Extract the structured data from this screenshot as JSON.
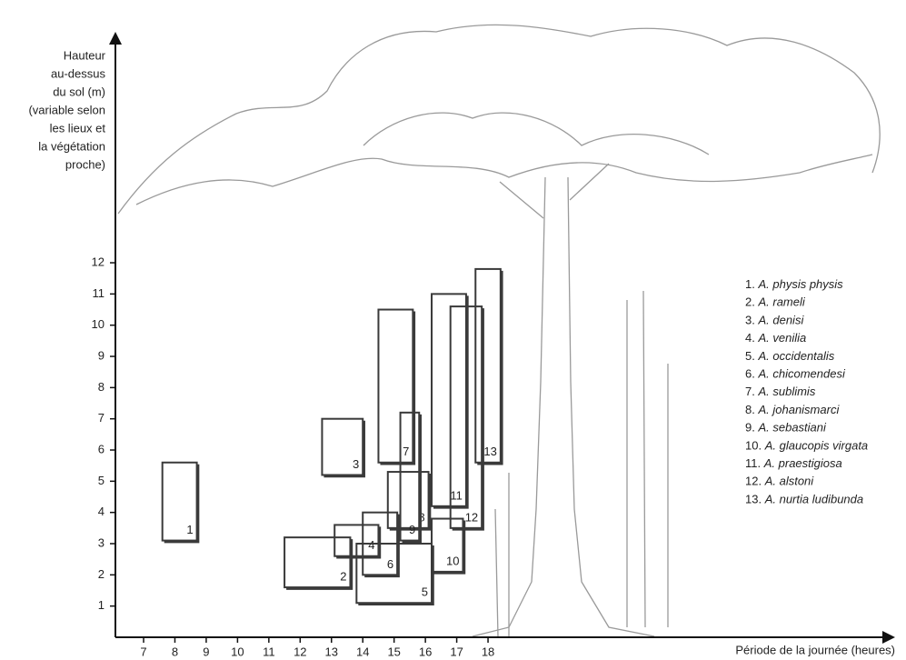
{
  "chart_data": {
    "type": "range",
    "ylabel": [
      "Hauteur",
      "au-dessus",
      "du sol (m)",
      "(variable selon",
      "les lieux et",
      "la végétation",
      "proche)"
    ],
    "xlabel": "Période de la journée (heures)",
    "xlim": [
      6.1,
      31
    ],
    "ylim": [
      0,
      19.4
    ],
    "xticks": [
      7,
      8,
      9,
      10,
      11,
      12,
      13,
      14,
      15,
      16,
      17,
      18
    ],
    "yticks": [
      1,
      2,
      3,
      4,
      5,
      6,
      7,
      8,
      9,
      10,
      11,
      12
    ],
    "color": "#3a3a3a",
    "series": [
      {
        "label": "1",
        "key": "1.",
        "name": "A. physis physis",
        "x": [
          7.6,
          8.7
        ],
        "y": [
          3.1,
          5.6
        ]
      },
      {
        "label": "2",
        "key": "2.",
        "name": "A. rameli",
        "x": [
          11.5,
          13.6
        ],
        "y": [
          1.6,
          3.2
        ]
      },
      {
        "label": "3",
        "key": "3.",
        "name": "A. denisi",
        "x": [
          12.7,
          14.0
        ],
        "y": [
          5.2,
          7.0
        ]
      },
      {
        "label": "4",
        "key": "4.",
        "name": "A. venilia",
        "x": [
          13.1,
          14.5
        ],
        "y": [
          2.6,
          3.6
        ]
      },
      {
        "label": "5",
        "key": "5.",
        "name": "A. occidentalis",
        "x": [
          13.8,
          16.2
        ],
        "y": [
          1.1,
          3.0
        ]
      },
      {
        "label": "6",
        "key": "6.",
        "name": "A. chicomendesi",
        "x": [
          14.0,
          15.1
        ],
        "y": [
          2.0,
          4.0
        ]
      },
      {
        "label": "7",
        "key": "7.",
        "name": "A. sublimis",
        "x": [
          14.5,
          15.6
        ],
        "y": [
          5.6,
          10.5
        ]
      },
      {
        "label": "8",
        "key": "8.",
        "name": "A. johanismarci",
        "x": [
          14.8,
          16.1
        ],
        "y": [
          3.5,
          5.3
        ]
      },
      {
        "label": "9",
        "key": "9.",
        "name": "A. sebastiani",
        "x": [
          15.2,
          15.8
        ],
        "y": [
          3.1,
          7.2
        ]
      },
      {
        "label": "10",
        "key": "10.",
        "name": "A. glaucopis virgata",
        "x": [
          16.2,
          17.2
        ],
        "y": [
          2.1,
          3.8
        ]
      },
      {
        "label": "11",
        "key": "11.",
        "name": "A. praestigiosa",
        "x": [
          16.2,
          17.3
        ],
        "y": [
          4.2,
          11.0
        ]
      },
      {
        "label": "12",
        "key": "12.",
        "name": "A. alstoni",
        "x": [
          16.8,
          17.8
        ],
        "y": [
          3.5,
          10.6
        ]
      },
      {
        "label": "13",
        "key": "13.",
        "name": "A. nurtia ludibunda",
        "x": [
          17.6,
          18.4
        ],
        "y": [
          5.6,
          11.8
        ]
      }
    ]
  }
}
